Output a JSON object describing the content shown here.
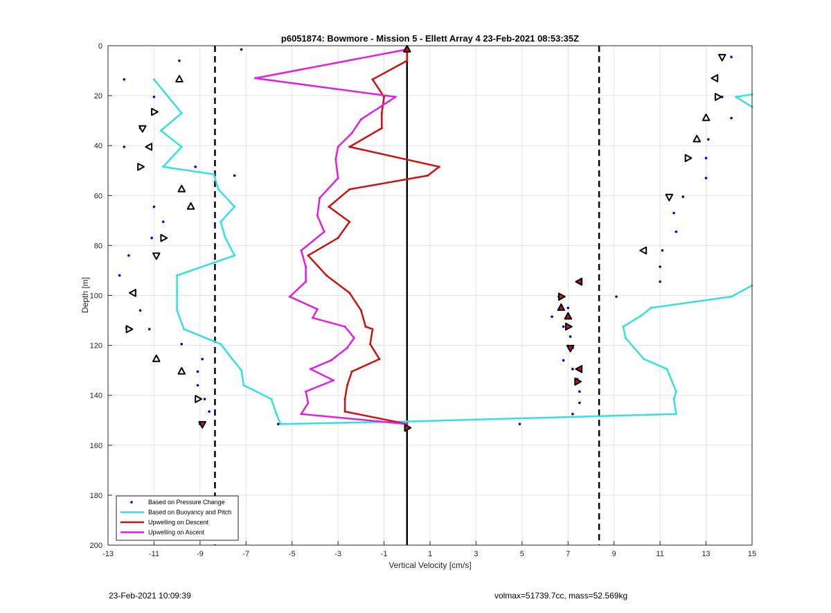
{
  "chart_data": {
    "type": "scatter",
    "title": "p6051874: Bowmore - Mission 5 - Ellett Array 4 23-Feb-2021 08:53:35Z",
    "xlabel": "Vertical Velocity [cm/s]",
    "ylabel": "Depth [m]",
    "xlim": [
      -13,
      15
    ],
    "ylim": [
      0,
      200
    ],
    "y_reversed": true,
    "grid": true,
    "legend_position": "bottom-left",
    "x_ticks": [
      -13,
      -11,
      -9,
      -7,
      -5,
      -3,
      -1,
      1,
      3,
      5,
      7,
      9,
      11,
      13,
      15
    ],
    "y_ticks": [
      0,
      20,
      40,
      60,
      80,
      100,
      120,
      140,
      160,
      180,
      200
    ],
    "reference_lines": [
      {
        "x": -8.35,
        "style": "dashed",
        "color": "#000000"
      },
      {
        "x": 0,
        "style": "solid",
        "color": "#000000"
      },
      {
        "x": 8.35,
        "style": "dashed",
        "color": "#000000"
      }
    ],
    "series": [
      {
        "name": "Based on Pressure Change",
        "kind": "points",
        "color": "#0000cc",
        "points": [
          [
            -7.2,
            1.5
          ],
          [
            -9.9,
            6
          ],
          [
            -12.3,
            13.5
          ],
          [
            -11.0,
            20.5
          ],
          [
            -11.0,
            26.5
          ],
          [
            -11.6,
            33
          ],
          [
            -12.3,
            40.5
          ],
          [
            -9.2,
            48.5
          ],
          [
            -7.5,
            52
          ],
          [
            -9.8,
            57.5
          ],
          [
            -11.0,
            64.5
          ],
          [
            -10.6,
            70.5
          ],
          [
            -11.1,
            77
          ],
          [
            -12.1,
            84
          ],
          [
            -12.5,
            92
          ],
          [
            -11.9,
            99
          ],
          [
            -11.6,
            106
          ],
          [
            -12.2,
            113
          ],
          [
            -11.2,
            113.5
          ],
          [
            -9.8,
            119.5
          ],
          [
            -8.9,
            125.5
          ],
          [
            -9.1,
            130.5
          ],
          [
            -9.1,
            136
          ],
          [
            -8.8,
            141.5
          ],
          [
            -8.6,
            146.5
          ],
          [
            -9.0,
            151.5
          ],
          [
            -5.6,
            151.5
          ],
          [
            4.9,
            151.5
          ],
          [
            14.1,
            4.5
          ],
          [
            13.4,
            13
          ],
          [
            13.7,
            20.5
          ],
          [
            14.1,
            29
          ],
          [
            13.1,
            37.5
          ],
          [
            13.0,
            45
          ],
          [
            13.0,
            53
          ],
          [
            12.0,
            60.5
          ],
          [
            11.6,
            67
          ],
          [
            11.7,
            74.5
          ],
          [
            11.1,
            82
          ],
          [
            11.0,
            88.5
          ],
          [
            11.0,
            94.5
          ],
          [
            9.1,
            100.5
          ],
          [
            6.6,
            100.5
          ],
          [
            7.0,
            105
          ],
          [
            6.3,
            108.5
          ],
          [
            6.8,
            112.5
          ],
          [
            7.1,
            116.5
          ],
          [
            7.2,
            121
          ],
          [
            6.8,
            126
          ],
          [
            7.2,
            129.5
          ],
          [
            7.4,
            133.5
          ],
          [
            7.5,
            138.5
          ],
          [
            7.5,
            143
          ],
          [
            7.2,
            147.5
          ]
        ]
      },
      {
        "name": "Based on Buoyancy and Pitch",
        "kind": "line",
        "color": "#33e0e0",
        "points": [
          [
            -11.0,
            13.5
          ],
          [
            -9.8,
            27
          ],
          [
            -10.7,
            34
          ],
          [
            -9.8,
            40.5
          ],
          [
            -10.6,
            48.5
          ],
          [
            -8.4,
            51.5
          ],
          [
            -8.2,
            57.5
          ],
          [
            -7.5,
            64.5
          ],
          [
            -8.1,
            70.5
          ],
          [
            -7.9,
            77
          ],
          [
            -7.5,
            84
          ],
          [
            -10.0,
            92
          ],
          [
            -10.0,
            99
          ],
          [
            -10.0,
            106
          ],
          [
            -9.7,
            113.5
          ],
          [
            -8.1,
            119.5
          ],
          [
            -7.6,
            125.5
          ],
          [
            -7.2,
            130
          ],
          [
            -7.1,
            136
          ],
          [
            -5.9,
            141.5
          ],
          [
            -5.7,
            147
          ],
          [
            -5.5,
            151.5
          ],
          [
            0.0,
            150.5
          ],
          [
            11.7,
            147.5
          ],
          [
            11.6,
            141.5
          ],
          [
            11.7,
            138.5
          ],
          [
            11.3,
            129.5
          ],
          [
            10.3,
            125.5
          ],
          [
            9.5,
            117
          ],
          [
            9.4,
            112.5
          ],
          [
            10.2,
            108
          ],
          [
            10.6,
            105
          ],
          [
            14.1,
            100.5
          ],
          [
            15.0,
            96
          ],
          [
            null,
            null
          ],
          [
            15.0,
            24.5
          ],
          [
            14.3,
            20.5
          ],
          [
            15.0,
            19.5
          ]
        ]
      },
      {
        "name": "Upwelling on Descent",
        "kind": "line",
        "color": "#cc1111",
        "points": [
          [
            0.0,
            1.5
          ],
          [
            0.0,
            6
          ],
          [
            -1.5,
            13.5
          ],
          [
            -1.0,
            20.5
          ],
          [
            -1.1,
            27
          ],
          [
            -1.1,
            33
          ],
          [
            -2.5,
            40.5
          ],
          [
            1.4,
            48.5
          ],
          [
            0.9,
            52
          ],
          [
            -2.5,
            57.5
          ],
          [
            -3.4,
            64.5
          ],
          [
            -2.5,
            70.5
          ],
          [
            -3.0,
            77
          ],
          [
            -4.3,
            84
          ],
          [
            -3.5,
            92
          ],
          [
            -2.5,
            99
          ],
          [
            -2.0,
            106
          ],
          [
            -1.8,
            112.5
          ],
          [
            -1.5,
            113.5
          ],
          [
            -1.6,
            119.5
          ],
          [
            -1.2,
            125.5
          ],
          [
            -2.4,
            130.5
          ],
          [
            -2.6,
            136
          ],
          [
            -2.7,
            141.5
          ],
          [
            -2.7,
            146.5
          ],
          [
            0.0,
            151.5
          ],
          [
            0.0,
            153
          ]
        ]
      },
      {
        "name": "Upwelling on Ascent",
        "kind": "line",
        "color": "#e020e0",
        "points": [
          [
            0.0,
            1.5
          ],
          [
            -6.6,
            13
          ],
          [
            -0.5,
            20.5
          ],
          [
            -2.0,
            29.5
          ],
          [
            -2.4,
            35
          ],
          [
            -3.0,
            40.5
          ],
          [
            -3.1,
            45.5
          ],
          [
            -3.0,
            53
          ],
          [
            -3.8,
            61
          ],
          [
            -3.9,
            68
          ],
          [
            -3.6,
            74.5
          ],
          [
            -4.6,
            82
          ],
          [
            -4.4,
            88.5
          ],
          [
            -4.4,
            94.5
          ],
          [
            -5.1,
            100.5
          ],
          [
            -3.9,
            105.5
          ],
          [
            -4.1,
            109
          ],
          [
            -2.7,
            112.5
          ],
          [
            -2.3,
            117
          ],
          [
            -2.6,
            121
          ],
          [
            -3.3,
            126
          ],
          [
            -4.2,
            129.5
          ],
          [
            -3.2,
            134
          ],
          [
            -4.4,
            138.5
          ],
          [
            -4.3,
            143
          ],
          [
            -4.6,
            147.5
          ],
          [
            0.0,
            151.5
          ]
        ]
      },
      {
        "name": "",
        "kind": "triangles",
        "color": "#000000",
        "marker_fill": "#ffffff",
        "points": [
          [
            -9.9,
            13.5
          ],
          [
            -11.0,
            26.5
          ],
          [
            -11.5,
            33
          ],
          [
            -11.2,
            40.5
          ],
          [
            -11.6,
            48.5
          ],
          [
            -9.8,
            57.5
          ],
          [
            -9.4,
            64.5
          ],
          [
            -10.6,
            77
          ],
          [
            -10.9,
            84
          ],
          [
            -11.9,
            99
          ],
          [
            -12.1,
            113.5
          ],
          [
            -10.9,
            125.5
          ],
          [
            -9.8,
            130.5
          ],
          [
            -9.1,
            141.5
          ],
          [
            13.7,
            4.5
          ],
          [
            13.4,
            13
          ],
          [
            13.5,
            20.5
          ],
          [
            13.0,
            29
          ],
          [
            12.6,
            37.5
          ],
          [
            12.2,
            45
          ],
          [
            11.4,
            60.5
          ],
          [
            10.3,
            82
          ]
        ]
      },
      {
        "name": "",
        "kind": "triangles",
        "color": "#000000",
        "marker_fill": "#cc1111",
        "points": [
          [
            0.0,
            1.5
          ],
          [
            0.0,
            153
          ],
          [
            -8.9,
            151.5
          ],
          [
            7.5,
            94.5
          ],
          [
            6.7,
            100.5
          ],
          [
            6.7,
            105
          ],
          [
            7.0,
            108.5
          ],
          [
            7.0,
            112.5
          ],
          [
            7.1,
            121
          ],
          [
            7.5,
            129.5
          ],
          [
            7.4,
            134.5
          ]
        ]
      }
    ]
  },
  "footer": {
    "timestamp": "23-Feb-2021 10:09:39",
    "info": "volmax=51739.7cc, mass=52.569kg"
  }
}
